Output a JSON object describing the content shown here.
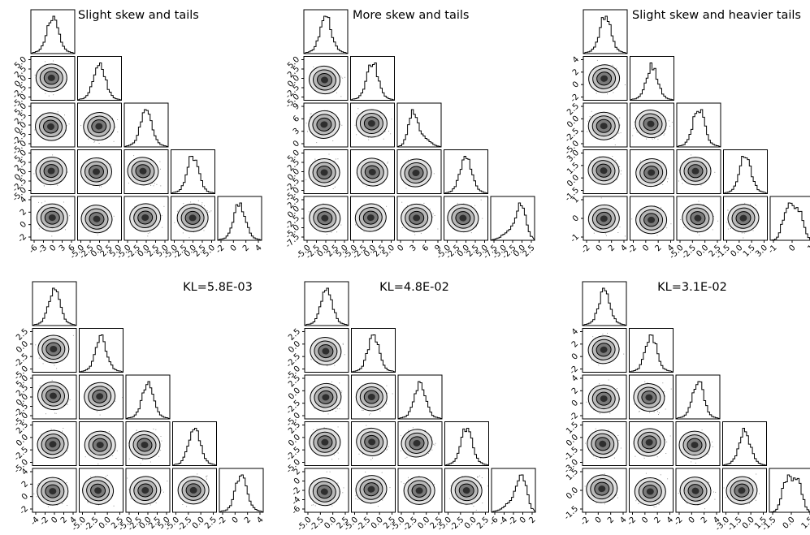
{
  "chart_data": [
    {
      "type": "corner",
      "title": "Slight skew and tails",
      "dims": 5,
      "diag_ticks": [
        [
          "-6",
          "-3",
          "0",
          "3",
          "6"
        ],
        [
          "-5.0",
          "-2.5",
          "0.0",
          "2.5",
          "5.0"
        ],
        [
          "-5.0",
          "-2.5",
          "0.0",
          "2.5",
          "5.0"
        ],
        [
          "-5.0",
          "-2.5",
          "0.0",
          "2.5",
          "5.0"
        ],
        [
          "-2",
          "0",
          "2",
          "4"
        ]
      ],
      "marginal_shape": [
        "sym",
        "sym",
        "sym",
        "sym",
        "sym"
      ]
    },
    {
      "type": "corner",
      "title": "More skew and tails",
      "dims": 5,
      "diag_ticks": [
        [
          "-5.0",
          "-2.5",
          "0.0",
          "2.5",
          "5.0"
        ],
        [
          "-5.0",
          "-2.5",
          "0.0",
          "2.5",
          "5.0"
        ],
        [
          "0",
          "3",
          "6",
          "9"
        ],
        [
          "-5.0",
          "-2.5",
          "0.0",
          "2.5",
          "5.0"
        ],
        [
          "-7.5",
          "-5.0",
          "-2.5",
          "0.0",
          "2.5"
        ]
      ],
      "marginal_shape": [
        "sym",
        "sym",
        "right",
        "sym",
        "left"
      ]
    },
    {
      "type": "corner",
      "title": "Slight skew and heavier tails",
      "dims": 5,
      "diag_ticks": [
        [
          "-2",
          "0",
          "2",
          "4"
        ],
        [
          "-2",
          "0",
          "2",
          "4"
        ],
        [
          "-5.0",
          "-2.5",
          "0.0",
          "2.5"
        ],
        [
          "-1.5",
          "0.0",
          "1.5",
          "3.0"
        ],
        [
          "-1",
          "0",
          "1"
        ]
      ],
      "marginal_shape": [
        "sym",
        "sym",
        "sym",
        "sym",
        "bimodal"
      ]
    },
    {
      "type": "corner",
      "title": "KL=5.8E-03",
      "dims": 5,
      "diag_ticks": [
        [
          "-4",
          "-2",
          "0",
          "2",
          "4"
        ],
        [
          "-5.0",
          "-2.5",
          "0.0",
          "2.5"
        ],
        [
          "-5.0",
          "-2.5",
          "0.0",
          "2.5",
          "5.0"
        ],
        [
          "-5.0",
          "-2.5",
          "0.0",
          "2.5"
        ],
        [
          "-2",
          "0",
          "2",
          "4"
        ]
      ],
      "marginal_shape": [
        "sym",
        "sym",
        "sym",
        "sym",
        "sym"
      ]
    },
    {
      "type": "corner",
      "title": "KL=4.8E-02",
      "dims": 5,
      "diag_ticks": [
        [
          "-5.0",
          "-2.5",
          "0.0",
          "2.5"
        ],
        [
          "-5.0",
          "-2.5",
          "0.0",
          "2.5"
        ],
        [
          "-5.0",
          "-2.5",
          "0.0",
          "2.5"
        ],
        [
          "-5.0",
          "-2.5",
          "0.0",
          "2.5"
        ],
        [
          "-6",
          "-4",
          "-2",
          "0",
          "2"
        ]
      ],
      "marginal_shape": [
        "sym",
        "sym",
        "sym",
        "sym",
        "left"
      ]
    },
    {
      "type": "corner",
      "title": "KL=3.1E-02",
      "dims": 5,
      "diag_ticks": [
        [
          "-2",
          "0",
          "2",
          "4"
        ],
        [
          "-2",
          "0",
          "2",
          "4"
        ],
        [
          "-2",
          "0",
          "2",
          "4"
        ],
        [
          "-3.0",
          "-1.5",
          "0.0",
          "1.5"
        ],
        [
          "-1.5",
          "0.0",
          "1.5"
        ]
      ],
      "marginal_shape": [
        "sym",
        "sym",
        "sym",
        "sym",
        "bimodal"
      ]
    }
  ]
}
